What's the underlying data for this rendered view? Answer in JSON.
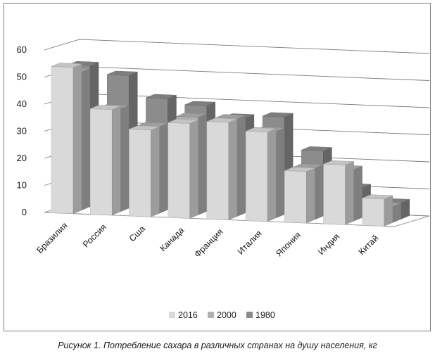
{
  "caption": "Рисунок 1. Потребление сахара в различных странах на душу населения, кг",
  "chart_data": {
    "type": "bar",
    "style": "3d-clustered-columns",
    "categories": [
      "Бразилия",
      "Россия",
      "Сша",
      "Канада",
      "Франция",
      "Италия",
      "Япония",
      "Индия",
      "Китай"
    ],
    "series": [
      {
        "name": "2016",
        "values": [
          54,
          39,
          32,
          35,
          36,
          33,
          19,
          22,
          10
        ],
        "color": "#d9d9d9"
      },
      {
        "name": "2000",
        "values": [
          51,
          38,
          32,
          36,
          36,
          32,
          19,
          19,
          6
        ],
        "color": "#b0b0b0"
      },
      {
        "name": "1980",
        "values": [
          52,
          49,
          41,
          39,
          35,
          36,
          24,
          11,
          6
        ],
        "color": "#8c8c8c"
      }
    ],
    "yticks": [
      "0",
      "10",
      "20",
      "30",
      "40",
      "50",
      "60"
    ],
    "ylim": [
      0,
      60
    ],
    "grid": true,
    "legend": "bottom"
  }
}
